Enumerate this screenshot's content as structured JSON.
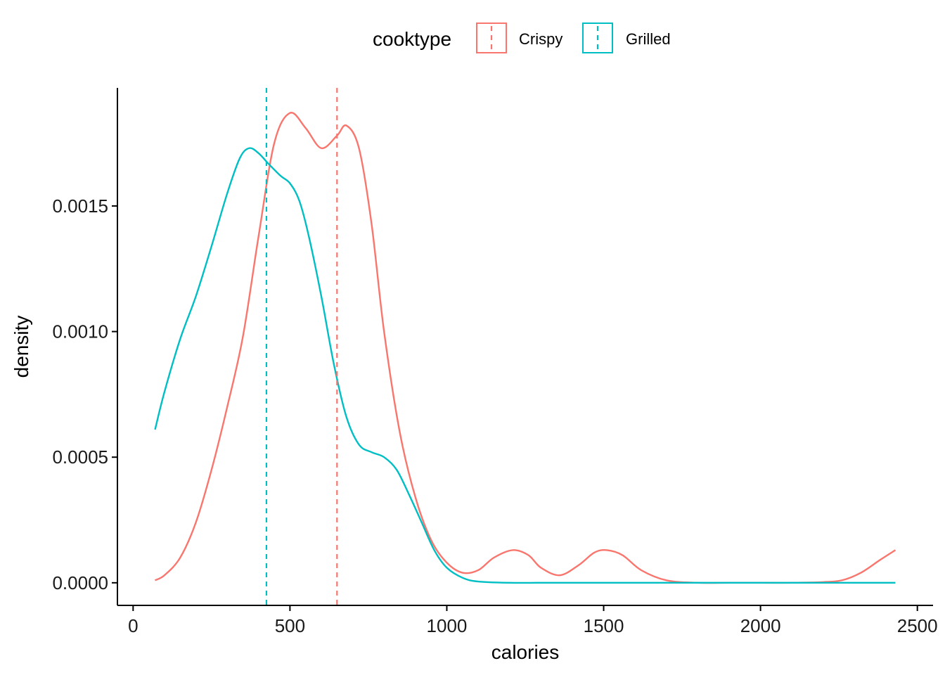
{
  "colors": {
    "Crispy": "#F8766D",
    "Grilled": "#00BFC4",
    "axis": "#000000"
  },
  "chart_data": {
    "type": "line",
    "subtype": "density",
    "xlabel": "calories",
    "ylabel": "density",
    "xlim": [
      -50,
      2550
    ],
    "ylim": [
      -9e-05,
      0.00197
    ],
    "x_ticks": [
      0,
      500,
      1000,
      1500,
      2000,
      2500
    ],
    "x_tick_labels": [
      "0",
      "500",
      "1000",
      "1500",
      "2000",
      "2500"
    ],
    "y_ticks": [
      0,
      0.0005,
      0.001,
      0.0015
    ],
    "y_tick_labels": [
      "0.0000",
      "0.0005",
      "0.0010",
      "0.0015"
    ],
    "grid": false,
    "legend": {
      "title": "cooktype",
      "position": "top",
      "entries": [
        "Crispy",
        "Grilled"
      ]
    },
    "series": [
      {
        "name": "Crispy",
        "color": "#F8766D",
        "mean_line_x": 650,
        "points": [
          [
            70,
            1e-05
          ],
          [
            100,
            3e-05
          ],
          [
            150,
            0.0001
          ],
          [
            200,
            0.00024
          ],
          [
            250,
            0.00045
          ],
          [
            300,
            0.0007
          ],
          [
            350,
            0.00098
          ],
          [
            400,
            0.00138
          ],
          [
            450,
            0.00175
          ],
          [
            500,
            0.00187
          ],
          [
            550,
            0.00181
          ],
          [
            600,
            0.00173
          ],
          [
            650,
            0.00178
          ],
          [
            680,
            0.00182
          ],
          [
            720,
            0.00173
          ],
          [
            760,
            0.00143
          ],
          [
            800,
            0.001
          ],
          [
            850,
            0.0006
          ],
          [
            900,
            0.00034
          ],
          [
            950,
            0.00017
          ],
          [
            1000,
            8e-05
          ],
          [
            1050,
            4e-05
          ],
          [
            1100,
            5e-05
          ],
          [
            1150,
            0.0001
          ],
          [
            1210,
            0.00013
          ],
          [
            1260,
            0.00011
          ],
          [
            1300,
            6e-05
          ],
          [
            1360,
            3e-05
          ],
          [
            1420,
            7e-05
          ],
          [
            1470,
            0.00012
          ],
          [
            1510,
            0.00013
          ],
          [
            1560,
            0.00011
          ],
          [
            1620,
            5e-05
          ],
          [
            1700,
            1e-05
          ],
          [
            1800,
            0
          ],
          [
            1900,
            0
          ],
          [
            2000,
            0
          ],
          [
            2100,
            0
          ],
          [
            2200,
            3e-06
          ],
          [
            2260,
            1e-05
          ],
          [
            2320,
            4e-05
          ],
          [
            2380,
            9e-05
          ],
          [
            2430,
            0.00013
          ]
        ]
      },
      {
        "name": "Grilled",
        "color": "#00BFC4",
        "mean_line_x": 425,
        "points": [
          [
            70,
            0.00061
          ],
          [
            100,
            0.00076
          ],
          [
            150,
            0.00097
          ],
          [
            200,
            0.00114
          ],
          [
            250,
            0.00134
          ],
          [
            300,
            0.00155
          ],
          [
            340,
            0.00169
          ],
          [
            370,
            0.00173
          ],
          [
            400,
            0.00171
          ],
          [
            430,
            0.00167
          ],
          [
            470,
            0.00162
          ],
          [
            500,
            0.00159
          ],
          [
            530,
            0.00152
          ],
          [
            560,
            0.00138
          ],
          [
            600,
            0.00114
          ],
          [
            640,
            0.00087
          ],
          [
            680,
            0.00066
          ],
          [
            720,
            0.00055
          ],
          [
            760,
            0.00052
          ],
          [
            800,
            0.0005
          ],
          [
            840,
            0.00045
          ],
          [
            880,
            0.00035
          ],
          [
            920,
            0.00024
          ],
          [
            960,
            0.00013
          ],
          [
            1000,
            6e-05
          ],
          [
            1050,
            2e-05
          ],
          [
            1100,
            5e-06
          ],
          [
            1200,
            0
          ],
          [
            1300,
            0
          ],
          [
            1400,
            0
          ],
          [
            1600,
            0
          ],
          [
            1800,
            0
          ],
          [
            2000,
            0
          ],
          [
            2200,
            0
          ],
          [
            2430,
            0
          ]
        ]
      }
    ]
  }
}
